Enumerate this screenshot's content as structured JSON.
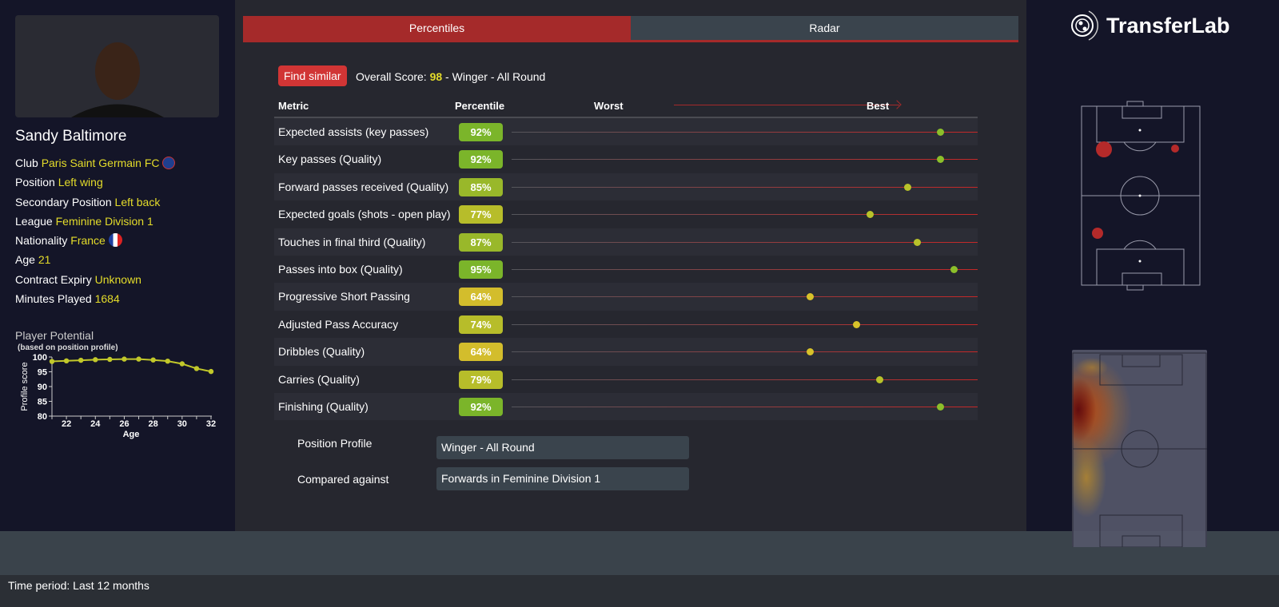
{
  "player": {
    "name": "Sandy Baltimore",
    "fields": [
      {
        "label": "Club",
        "value": "Paris Saint Germain FC"
      },
      {
        "label": "Position",
        "value": "Left wing"
      },
      {
        "label": "Secondary Position",
        "value": "Left back"
      },
      {
        "label": "League",
        "value": "Feminine Division 1"
      },
      {
        "label": "Nationality",
        "value": "France"
      },
      {
        "label": "Age",
        "value": "21"
      },
      {
        "label": "Contract Expiry",
        "value": "Unknown"
      },
      {
        "label": "Minutes Played",
        "value": "1684"
      }
    ]
  },
  "potential": {
    "title": "Player Potential",
    "subtitle": "(based on position profile)"
  },
  "chart_data": {
    "type": "line",
    "xlabel": "Age",
    "ylabel": "Profile score",
    "ylim": [
      80,
      100
    ],
    "xlim": [
      21,
      32
    ],
    "x": [
      21,
      22,
      23,
      24,
      25,
      26,
      27,
      28,
      29,
      30,
      31,
      32
    ],
    "values": [
      98.5,
      98.7,
      98.9,
      99.1,
      99.2,
      99.3,
      99.3,
      99.0,
      98.6,
      97.7,
      96.1,
      95.1
    ],
    "yticks": [
      "80",
      "85",
      "90",
      "95",
      "100"
    ],
    "xticks": [
      "22",
      "24",
      "26",
      "28",
      "30",
      "32"
    ],
    "color": "#c2c82a"
  },
  "tabs": [
    "Percentiles",
    "Radar"
  ],
  "find_similar": "Find similar",
  "overall": {
    "prefix": "Overall Score: ",
    "score": "98",
    "suffix": " - Winger - All Round"
  },
  "table": {
    "headers": [
      "Metric",
      "Percentile",
      "Worst",
      "Best"
    ],
    "rows": [
      {
        "metric": "Expected assists (key passes)",
        "pct": 92,
        "label": "92%"
      },
      {
        "metric": "Key passes (Quality)",
        "pct": 92,
        "label": "92%"
      },
      {
        "metric": "Forward passes received (Quality)",
        "pct": 85,
        "label": "85%"
      },
      {
        "metric": "Expected goals (shots - open play)",
        "pct": 77,
        "label": "77%"
      },
      {
        "metric": "Touches in final third (Quality)",
        "pct": 87,
        "label": "87%"
      },
      {
        "metric": "Passes into box (Quality)",
        "pct": 95,
        "label": "95%"
      },
      {
        "metric": "Progressive Short Passing",
        "pct": 64,
        "label": "64%"
      },
      {
        "metric": "Adjusted Pass Accuracy",
        "pct": 74,
        "label": "74%"
      },
      {
        "metric": "Dribbles (Quality)",
        "pct": 64,
        "label": "64%"
      },
      {
        "metric": "Carries (Quality)",
        "pct": 79,
        "label": "79%"
      },
      {
        "metric": "Finishing (Quality)",
        "pct": 92,
        "label": "92%"
      }
    ]
  },
  "profile": {
    "position_label": "Position Profile",
    "position_value": "Winger - All Round",
    "compare_label": "Compared against",
    "compare_value": "Forwards in Feminine Division 1"
  },
  "brand": "TransferLab",
  "footer": "Time period: Last 12 months"
}
